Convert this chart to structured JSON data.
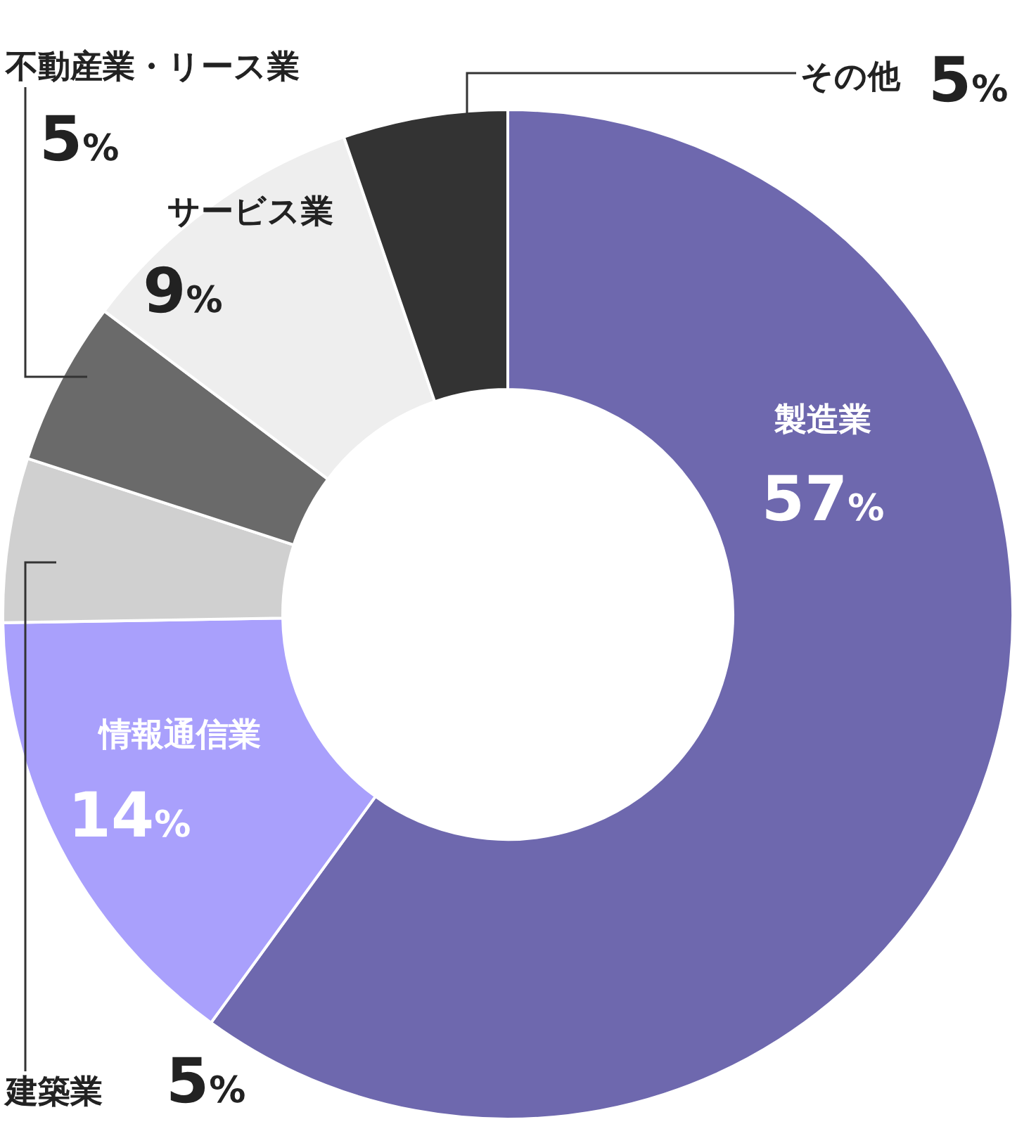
{
  "chart_data": {
    "type": "donut",
    "categories": [
      "製造業",
      "情報通信業",
      "建築業",
      "不動産業・リース業",
      "サービス業",
      "その他"
    ],
    "values": [
      57,
      14,
      5,
      5,
      9,
      5
    ],
    "value_labels": [
      "57%",
      "14%",
      "5%",
      "5%",
      "9%",
      "5%"
    ],
    "colors": [
      "#6e68ae",
      "#a9a0fc",
      "#d0d0d0",
      "#6a6a6a",
      "#eeeeee",
      "#333333"
    ],
    "legend": false
  }
}
